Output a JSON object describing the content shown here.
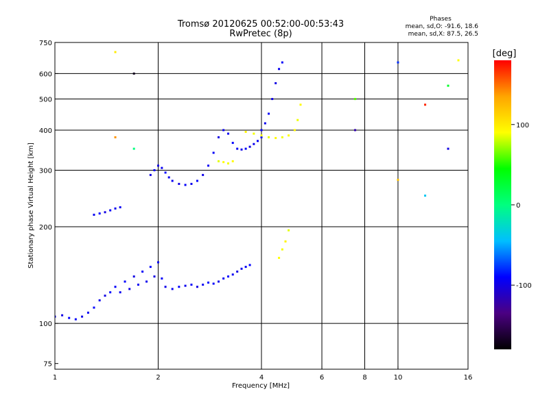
{
  "header": {
    "title": "Tromsø 20120625 00:52:00-00:53:43",
    "subtitle": "RwPretec (8p)",
    "phases_heading": "Phases",
    "phases_o": "mean, sd,O: -91.6, 18.6",
    "phases_x": "mean, sd,X:  87.5, 26.5"
  },
  "colorbar": {
    "label": "[deg]",
    "range": [
      -180,
      180
    ],
    "ticks": [
      {
        "label": "100",
        "value": 100
      },
      {
        "label": "0",
        "value": 0
      },
      {
        "label": "-100",
        "value": -100
      }
    ],
    "stops": [
      "#000000",
      "#4b0082",
      "#0000ff",
      "#00bfff",
      "#00ff7f",
      "#00ff00",
      "#ffff00",
      "#ffa500",
      "#ff0000"
    ]
  },
  "chart_data": {
    "type": "scatter",
    "xlabel": "Frequency [MHz]",
    "ylabel": "Stationary phase Virtual Height [km]",
    "xscale": "log",
    "yscale": "log",
    "xlim": [
      1,
      16
    ],
    "ylim": [
      72,
      750
    ],
    "xticks": [
      {
        "label": "1",
        "value": 1
      },
      {
        "label": "2",
        "value": 2
      },
      {
        "label": "4",
        "value": 4
      },
      {
        "label": "6",
        "value": 6
      },
      {
        "label": "8",
        "value": 8
      },
      {
        "label": "10",
        "value": 10
      },
      {
        "label": "16",
        "value": 16
      }
    ],
    "yticks": [
      {
        "label": "75",
        "value": 75
      },
      {
        "label": "100",
        "value": 100
      },
      {
        "label": "200",
        "value": 200
      },
      {
        "label": "300",
        "value": 300
      },
      {
        "label": "400",
        "value": 400
      },
      {
        "label": "500",
        "value": 500
      },
      {
        "label": "600",
        "value": 600
      },
      {
        "label": "750",
        "value": 750
      }
    ],
    "gridlines_x": [
      2,
      4,
      6,
      8,
      10
    ],
    "gridlines_y": [
      100,
      200,
      300,
      400,
      500,
      600
    ],
    "series": [
      {
        "x": [
          1.0,
          1.05,
          1.1,
          1.15,
          1.2,
          1.25,
          1.3,
          1.35,
          1.4,
          1.45,
          1.5,
          1.55,
          1.6,
          1.65,
          1.7,
          1.75,
          1.8,
          1.85,
          1.9,
          1.95,
          2.0,
          2.05,
          2.1,
          2.2,
          2.3,
          2.4,
          2.5,
          2.6,
          2.7,
          2.8,
          2.9,
          3.0,
          3.1,
          3.2,
          3.3,
          3.4,
          3.5,
          3.6,
          3.7
        ],
        "y": [
          105,
          106,
          104,
          103,
          105,
          108,
          112,
          118,
          122,
          125,
          130,
          125,
          135,
          128,
          140,
          132,
          145,
          135,
          150,
          140,
          155,
          138,
          130,
          128,
          130,
          131,
          132,
          130,
          132,
          134,
          133,
          135,
          138,
          140,
          142,
          145,
          148,
          150,
          152
        ],
        "phase": [
          -95,
          -100,
          -90,
          -92,
          -98,
          -94,
          -90,
          -96,
          -100,
          -88,
          -92,
          -95,
          -90,
          -98,
          -100,
          -94,
          -92,
          -96,
          -90,
          -100,
          -95,
          -92,
          -98,
          -94,
          -90,
          -96,
          -92,
          -100,
          -94,
          -88,
          -92,
          -98,
          -95,
          -90,
          -94,
          -100,
          -96,
          -92,
          -90
        ]
      },
      {
        "x": [
          1.3,
          1.35,
          1.4,
          1.45,
          1.5,
          1.55,
          1.9,
          1.95,
          2.0,
          2.05,
          2.1,
          2.15,
          2.2,
          2.3,
          2.4,
          2.5,
          2.6,
          2.7,
          2.8,
          2.9,
          3.0,
          3.1,
          3.2,
          3.3,
          3.4,
          3.5,
          3.6,
          3.7,
          3.8,
          3.9,
          4.0
        ],
        "y": [
          218,
          220,
          222,
          225,
          228,
          230,
          290,
          300,
          310,
          305,
          295,
          285,
          278,
          272,
          270,
          272,
          278,
          290,
          310,
          340,
          380,
          400,
          390,
          365,
          350,
          348,
          350,
          355,
          362,
          370,
          380
        ],
        "phase": [
          -95,
          -90,
          -100,
          -92,
          -96,
          -94,
          -98,
          -92,
          -100,
          -95,
          -90,
          -96,
          -94,
          -100,
          -92,
          -96,
          -90,
          -98,
          -94,
          -92,
          -100,
          -96,
          -95,
          -90,
          -94,
          -98,
          -92,
          -100,
          -96,
          -94,
          -90
        ]
      },
      {
        "x": [
          4.0,
          4.1,
          4.2,
          4.3,
          4.4,
          4.5,
          4.6
        ],
        "y": [
          400,
          420,
          450,
          500,
          560,
          620,
          650
        ],
        "phase": [
          -94,
          -96,
          -92,
          -98,
          -100,
          -95,
          -92
        ]
      },
      {
        "x": [
          3.0,
          3.1,
          3.2,
          3.3,
          3.6,
          3.8,
          4.0,
          4.2,
          4.4,
          4.6,
          4.8,
          5.0,
          5.1,
          5.2,
          4.5,
          4.6,
          4.7,
          4.8
        ],
        "y": [
          320,
          318,
          315,
          320,
          395,
          390,
          385,
          380,
          378,
          380,
          385,
          400,
          430,
          480,
          160,
          170,
          180,
          195
        ],
        "phase": [
          85,
          90,
          88,
          92,
          95,
          88,
          90,
          85,
          92,
          88,
          90,
          95,
          87,
          92,
          90,
          88,
          95,
          85
        ]
      },
      {
        "x": [
          1.5,
          1.5,
          1.7,
          1.7,
          7.5,
          7.5,
          10.0,
          10.0,
          12.0,
          12.0,
          14.0,
          14.0,
          15.0
        ],
        "y": [
          700,
          380,
          600,
          350,
          500,
          400,
          650,
          280,
          480,
          250,
          550,
          350,
          660
        ],
        "phase": [
          100,
          140,
          -170,
          0,
          60,
          -120,
          -80,
          120,
          170,
          -40,
          30,
          -100,
          90
        ]
      }
    ]
  }
}
